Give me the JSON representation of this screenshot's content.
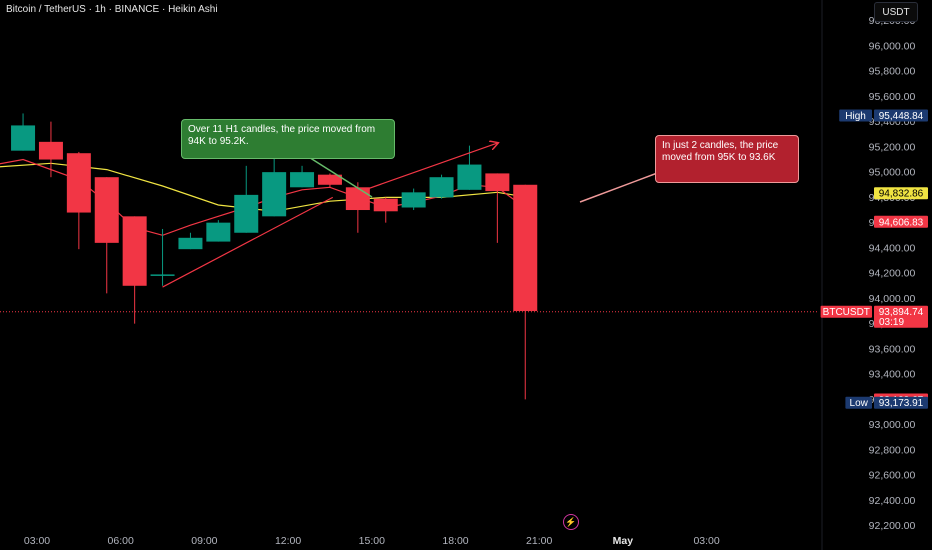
{
  "header": {
    "title": "Bitcoin / TetherUS · 1h · BINANCE · Heikin Ashi"
  },
  "currency_button": {
    "label": "USDT"
  },
  "annotations": {
    "green_note": "Over 11 H1 candles, the price moved from 94K to 95.2K.",
    "red_note": "In just 2 candles, the price moved from 95K to 93.6K"
  },
  "price_labels": [
    {
      "tag": "High",
      "value": "95,448.84",
      "y": 95448.84,
      "color": "#1c3a70"
    },
    {
      "tag": "",
      "value": "94,832.86",
      "y": 94832.86,
      "color": "#f0e442"
    },
    {
      "tag": "",
      "value": "94,606.83",
      "y": 94606.83,
      "color": "#f23645"
    },
    {
      "tag": "BTCUSDT",
      "value": "93,894.74",
      "sub": "03:19",
      "y": 93894.74,
      "color": "#f23645"
    },
    {
      "tag": "",
      "value": "93,199.67",
      "y": 93199.67,
      "color": "#f23645"
    },
    {
      "tag": "Low",
      "value": "93,173.91",
      "y": 93173.91,
      "color": "#1c3a70"
    }
  ],
  "chart_data": {
    "type": "candlestick",
    "title": "Bitcoin / TetherUS · 1h · BINANCE · Heikin Ashi",
    "ylim": [
      92150,
      96300
    ],
    "y_ticks": [
      "96,200.00",
      "96,000.00",
      "95,800.00",
      "95,600.00",
      "95,400.00",
      "95,200.00",
      "95,000.00",
      "94,800.00",
      "94,600.00",
      "94,400.00",
      "94,200.00",
      "94,000.00",
      "93,800.00",
      "93,600.00",
      "93,400.00",
      "93,200.00",
      "93,000.00",
      "92,800.00",
      "92,600.00",
      "92,400.00",
      "92,200.00"
    ],
    "y_tick_values": [
      96200,
      96000,
      95800,
      95600,
      95400,
      95200,
      95000,
      94800,
      94600,
      94400,
      94200,
      94000,
      93800,
      93600,
      93400,
      93200,
      93000,
      92800,
      92600,
      92400,
      92200
    ],
    "x_ticks": [
      "03:00",
      "06:00",
      "09:00",
      "12:00",
      "15:00",
      "18:00",
      "21:00",
      "May",
      "03:00"
    ],
    "x_tick_hours": [
      3,
      6,
      9,
      12,
      15,
      18,
      21,
      24,
      27
    ],
    "candles": [
      {
        "h": 2.5,
        "o": 95170,
        "c": 95370,
        "hi": 95465,
        "lo": 95170
      },
      {
        "h": 3.5,
        "o": 95240,
        "c": 95100,
        "hi": 95400,
        "lo": 94960
      },
      {
        "h": 4.5,
        "o": 95150,
        "c": 94680,
        "hi": 95160,
        "lo": 94390
      },
      {
        "h": 5.5,
        "o": 94960,
        "c": 94440,
        "hi": 94960,
        "lo": 94040
      },
      {
        "h": 6.5,
        "o": 94650,
        "c": 94100,
        "hi": 94650,
        "lo": 93800
      },
      {
        "h": 7.5,
        "o": 94190,
        "c": 94190,
        "hi": 94550,
        "lo": 94100
      },
      {
        "h": 8.5,
        "o": 94390,
        "c": 94480,
        "hi": 94520,
        "lo": 94390
      },
      {
        "h": 9.5,
        "o": 94450,
        "c": 94600,
        "hi": 94620,
        "lo": 94450
      },
      {
        "h": 10.5,
        "o": 94520,
        "c": 94820,
        "hi": 95050,
        "lo": 94520
      },
      {
        "h": 11.5,
        "o": 94650,
        "c": 95000,
        "hi": 95180,
        "lo": 94650
      },
      {
        "h": 12.5,
        "o": 94880,
        "c": 95000,
        "hi": 95050,
        "lo": 94880
      },
      {
        "h": 13.5,
        "o": 94980,
        "c": 94900,
        "hi": 94990,
        "lo": 94880
      },
      {
        "h": 14.5,
        "o": 94880,
        "c": 94700,
        "hi": 94920,
        "lo": 94520
      },
      {
        "h": 15.5,
        "o": 94790,
        "c": 94690,
        "hi": 94800,
        "lo": 94600
      },
      {
        "h": 16.5,
        "o": 94720,
        "c": 94840,
        "hi": 94870,
        "lo": 94700
      },
      {
        "h": 17.5,
        "o": 94800,
        "c": 94960,
        "hi": 94980,
        "lo": 94790
      },
      {
        "h": 18.5,
        "o": 94860,
        "c": 95060,
        "hi": 95210,
        "lo": 94860
      },
      {
        "h": 19.5,
        "o": 94990,
        "c": 94850,
        "hi": 94990,
        "lo": 94440
      },
      {
        "h": 20.5,
        "o": 94900,
        "c": 93900,
        "hi": 94900,
        "lo": 93200
      }
    ],
    "series": [
      {
        "name": "",
        "color": "#f0e442",
        "x": [
          0,
          1.5,
          3.5,
          5.5,
          7.5,
          9.5,
          11.5,
          13.5,
          15.5,
          17.5,
          19.5,
          20.6
        ],
        "values": [
          94980,
          95040,
          95070,
          95020,
          94890,
          94740,
          94690,
          94770,
          94800,
          94800,
          94840,
          94800
        ]
      },
      {
        "name": "",
        "color": "#f23645",
        "x": [
          0,
          1.5,
          2.5,
          4.5,
          5.5,
          6.5,
          7.5,
          8.5,
          9.5,
          10.5,
          11.5,
          12.5,
          13.5,
          14.5,
          15.5,
          16.5,
          17.5,
          18.5,
          19.5,
          20.6
        ],
        "values": [
          95000,
          95060,
          95100,
          94940,
          94760,
          94560,
          94500,
          94580,
          94650,
          94720,
          94800,
          94860,
          94880,
          94800,
          94720,
          94760,
          94810,
          94900,
          94880,
          94700
        ]
      }
    ],
    "trendlines": [
      {
        "color": "#f23645",
        "from": [
          7.5,
          94090
        ],
        "to": [
          13.6,
          94800
        ]
      },
      {
        "color": "#f23645",
        "from": [
          14.5,
          94840
        ],
        "to": [
          19.5,
          95230
        ],
        "arrow": true
      }
    ],
    "last_price": 93894.74
  }
}
